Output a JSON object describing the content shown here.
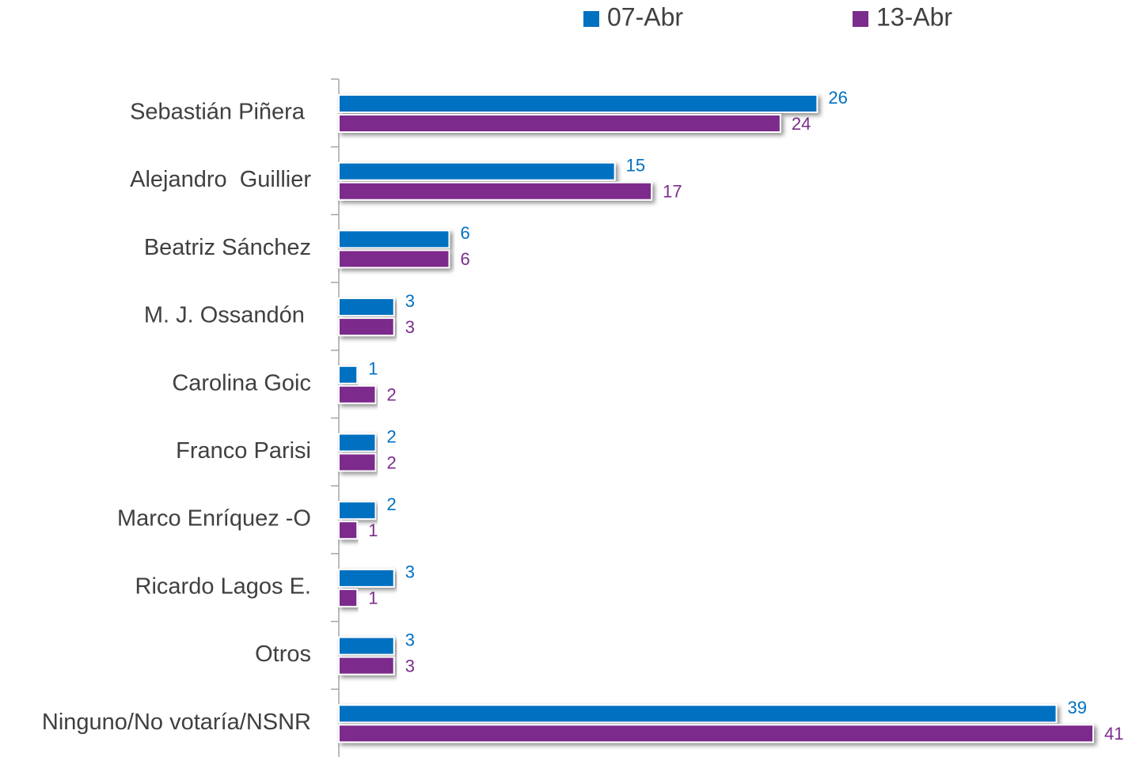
{
  "chart_data": {
    "type": "bar",
    "orientation": "horizontal",
    "legend": "top",
    "categories": [
      "Sebastián Piñera ",
      "Alejandro  Guillier",
      "Beatriz Sánchez",
      "M. J. Ossandón ",
      "Carolina Goic",
      "Franco Parisi",
      "Marco Enríquez -O",
      "Ricardo Lagos E.",
      "Otros",
      "Ninguno/No votaría/NSNR"
    ],
    "series": [
      {
        "name": "07-Abr",
        "color": "#0070c0",
        "values": [
          26,
          15,
          6,
          3,
          1,
          2,
          2,
          3,
          3,
          39
        ]
      },
      {
        "name": "13-Abr",
        "color": "#7b2c8c",
        "values": [
          24,
          17,
          6,
          3,
          2,
          2,
          1,
          1,
          3,
          41
        ]
      }
    ]
  }
}
